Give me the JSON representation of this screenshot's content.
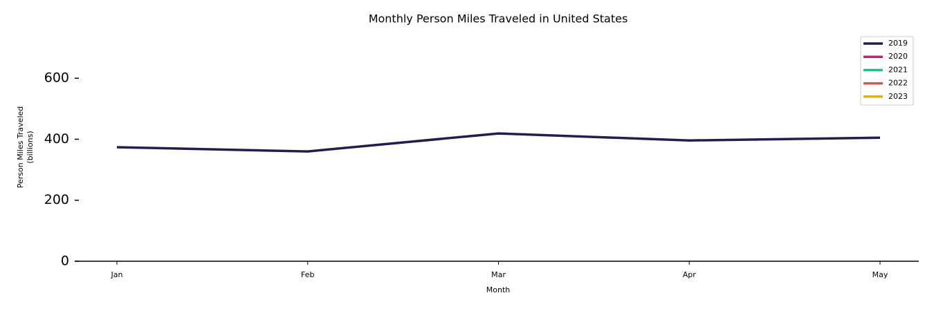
{
  "chart_data": {
    "type": "line",
    "title": "Monthly Person Miles Traveled in United States",
    "xlabel": "Month",
    "ylabel": [
      "Person Miles Traveled",
      "(billions)"
    ],
    "categories": [
      "Jan",
      "Feb",
      "Mar",
      "Apr",
      "May"
    ],
    "series": [
      {
        "name": "2019",
        "color": "#1f1f4f",
        "values": [
          374,
          360,
          419,
          396,
          405
        ]
      },
      {
        "name": "2020",
        "color": "#c81d7e",
        "values": [
          null,
          null,
          null,
          null,
          null
        ]
      },
      {
        "name": "2021",
        "color": "#24c08a",
        "values": [
          null,
          null,
          null,
          null,
          null
        ]
      },
      {
        "name": "2022",
        "color": "#d9534f",
        "values": [
          null,
          null,
          null,
          null,
          null
        ]
      },
      {
        "name": "2023",
        "color": "#dab21c",
        "values": [
          null,
          null,
          null,
          null,
          null
        ]
      }
    ],
    "ylim": [
      0,
      750
    ],
    "yticks": [
      0,
      200,
      400,
      600
    ],
    "grid": false,
    "legend": "upper right"
  }
}
